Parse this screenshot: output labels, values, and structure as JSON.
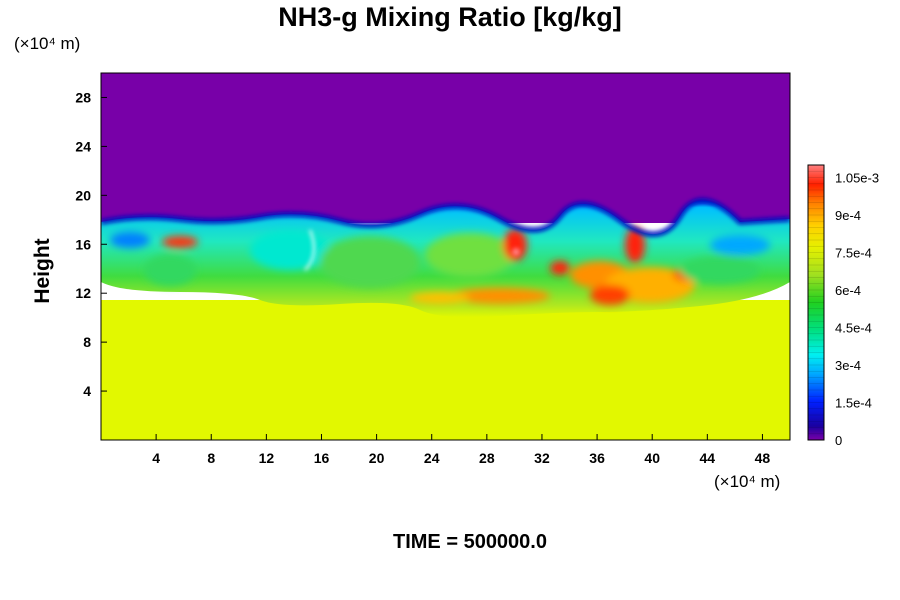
{
  "chart_data": {
    "type": "heatmap",
    "title": "NH3-g Mixing Ratio [kg/kg]",
    "ylabel": "Height",
    "xlabel": "",
    "x_unit": "(×10⁴ m)",
    "y_unit": "(×10⁴ m)",
    "x_ticks": [
      4,
      8,
      12,
      16,
      20,
      24,
      28,
      32,
      36,
      40,
      44,
      48
    ],
    "y_ticks": [
      4,
      8,
      12,
      16,
      20,
      24,
      28
    ],
    "xlim": [
      0,
      50
    ],
    "ylim": [
      0,
      30
    ],
    "colorbar": {
      "ticks": [
        "0",
        "1.5e-4",
        "3e-4",
        "4.5e-4",
        "6e-4",
        "7.5e-4",
        "9e-4",
        "1.05e-3"
      ],
      "tick_values": [
        0,
        0.00015,
        0.0003,
        0.00045,
        0.0006,
        0.00075,
        0.0009,
        0.00105
      ],
      "range": [
        0,
        0.0011
      ]
    },
    "regions": [
      {
        "y_range": [
          0,
          11
        ],
        "value": 0.00079
      },
      {
        "y_range": [
          11,
          17.5
        ],
        "value_range": [
          0.00025,
          0.00105
        ]
      },
      {
        "y_range": [
          17.5,
          30
        ],
        "value": 0
      }
    ],
    "annotation": "TIME = 500000.0"
  }
}
